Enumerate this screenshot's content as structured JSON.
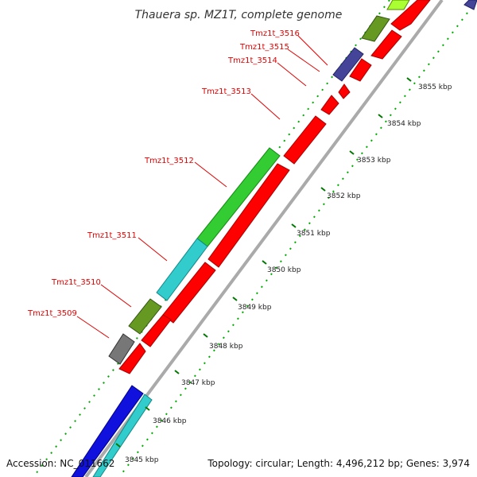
{
  "title": "Thauera sp. MZ1T, complete genome",
  "footer": {
    "accession": "Accession: NC_011662",
    "summary": "Topology: circular; Length: 4,496,212 bp; Genes: 3,974"
  },
  "colors": {
    "forward_gene": "#ff0000",
    "backbone": "#999999",
    "label": "#e00000",
    "tick": "#007700",
    "green": "#33cc33",
    "cyan": "#33cccc",
    "olive": "#669922",
    "gray": "#777777",
    "navy": "#444499",
    "blue": "#1111dd",
    "lime": "#aaff33"
  },
  "gene_labels": [
    {
      "id": "label-3516",
      "text": "Tmz1t_3516"
    },
    {
      "id": "label-3515",
      "text": "Tmz1t_3515"
    },
    {
      "id": "label-3514",
      "text": "Tmz1t_3514"
    },
    {
      "id": "label-3513",
      "text": "Tmz1t_3513"
    },
    {
      "id": "label-3512",
      "text": "Tmz1t_3512"
    },
    {
      "id": "label-3511",
      "text": "Tmz1t_3511"
    },
    {
      "id": "label-3510",
      "text": "Tmz1t_3510"
    },
    {
      "id": "label-3509",
      "text": "Tmz1t_3509"
    }
  ],
  "ticks": [
    "3855 kbp",
    "3854 kbp",
    "3853 kbp",
    "3852 kbp",
    "3851 kbp",
    "3850 kbp",
    "3849 kbp",
    "3848 kbp",
    "3847 kbp",
    "3846 kbp",
    "3845 kbp"
  ]
}
